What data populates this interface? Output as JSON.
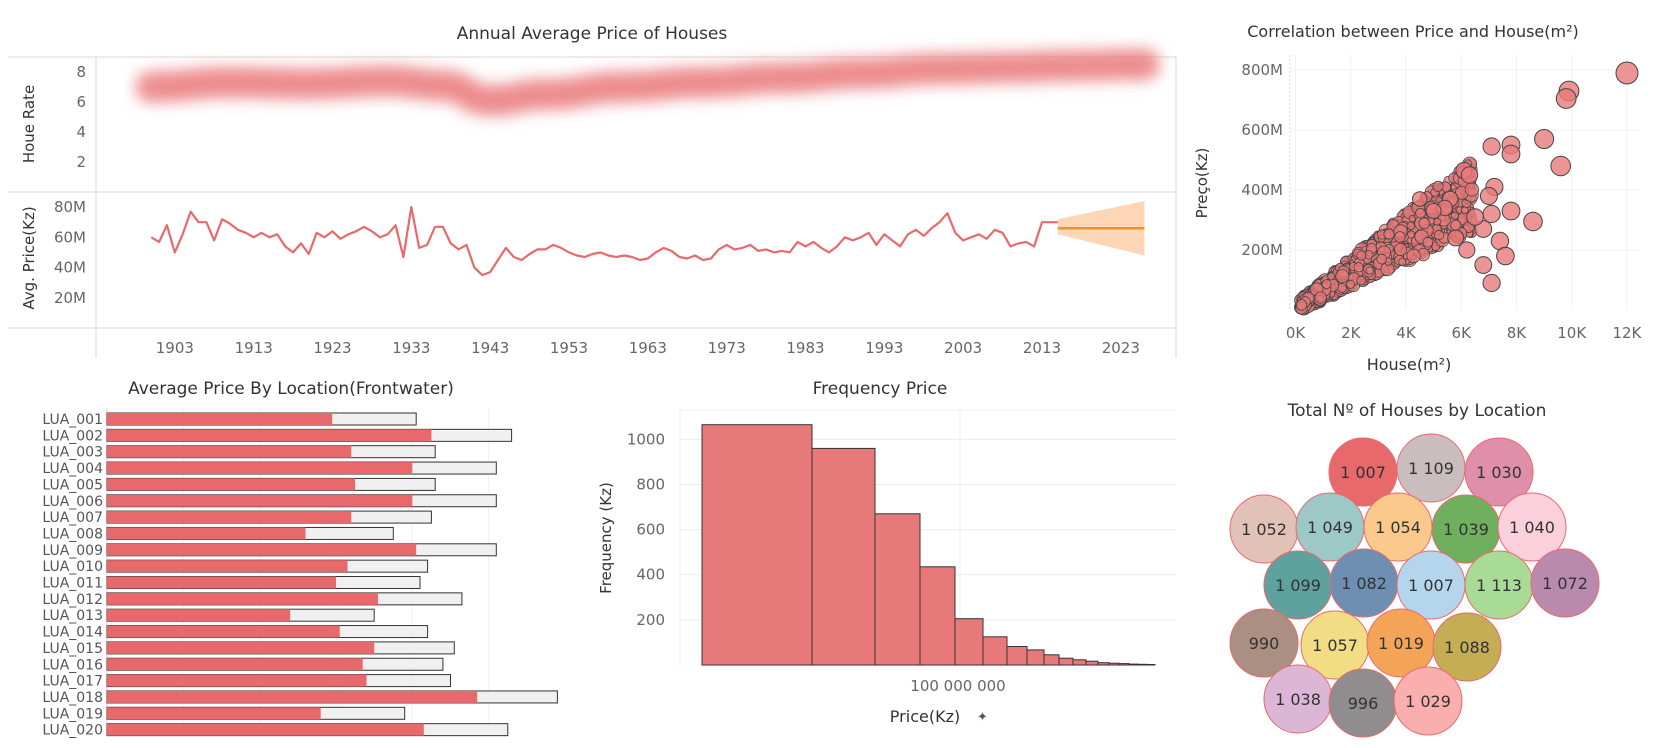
{
  "colors": {
    "primary": "#e8696b",
    "primary_fill": "#e8797a",
    "bar_outline": "#333333",
    "forecast": "#f28e2b",
    "forecast_band": "#fbcfa8",
    "grid": "#ececec",
    "bullet_ref": "#f0f0f0"
  },
  "chart_data": [
    {
      "id": "annual",
      "type": "line",
      "title": "Annual Average Price of Houses",
      "xlim": [
        1893,
        2030
      ],
      "x_ticks": [
        "1903",
        "1913",
        "1923",
        "1933",
        "1943",
        "1953",
        "1963",
        "1973",
        "1983",
        "1993",
        "2003",
        "2013",
        "2023"
      ],
      "x_tick_values": [
        1903,
        1913,
        1923,
        1933,
        1943,
        1953,
        1963,
        1973,
        1983,
        1993,
        2003,
        2013,
        2023
      ],
      "panels": [
        {
          "id": "rate",
          "ylabel": "Houe Rate",
          "ylim": [
            0,
            9
          ],
          "y_ticks": [
            "2",
            "4",
            "6",
            "8"
          ],
          "y_tick_values": [
            2,
            4,
            6,
            8
          ],
          "style": "blurred-band",
          "series": {
            "x": [
              1900,
              1910,
              1920,
              1930,
              1937,
              1943,
              1950,
              1960,
              1970,
              1980,
              1990,
              2000,
              2010,
              2015,
              2026
            ],
            "y": [
              7.0,
              7.3,
              7.2,
              7.4,
              7.1,
              6.1,
              6.5,
              7.0,
              7.3,
              7.6,
              7.9,
              8.2,
              8.3,
              8.4,
              8.5
            ]
          }
        },
        {
          "id": "price",
          "ylabel": "Avg. Price(Kz)",
          "ylim": [
            0,
            90
          ],
          "y_ticks": [
            "20M",
            "40M",
            "60M",
            "80M"
          ],
          "y_tick_values": [
            20,
            40,
            60,
            80
          ],
          "series": {
            "x": [
              1900,
              1901,
              1902,
              1903,
              1904,
              1905,
              1906,
              1907,
              1908,
              1909,
              1910,
              1911,
              1912,
              1913,
              1914,
              1915,
              1916,
              1917,
              1918,
              1919,
              1920,
              1921,
              1922,
              1923,
              1924,
              1925,
              1926,
              1927,
              1928,
              1929,
              1930,
              1931,
              1932,
              1933,
              1934,
              1935,
              1936,
              1937,
              1938,
              1939,
              1940,
              1941,
              1942,
              1943,
              1944,
              1945,
              1946,
              1947,
              1948,
              1949,
              1950,
              1951,
              1952,
              1953,
              1954,
              1955,
              1956,
              1957,
              1958,
              1959,
              1960,
              1961,
              1962,
              1963,
              1964,
              1965,
              1966,
              1967,
              1968,
              1969,
              1970,
              1971,
              1972,
              1973,
              1974,
              1975,
              1976,
              1977,
              1978,
              1979,
              1980,
              1981,
              1982,
              1983,
              1984,
              1985,
              1986,
              1987,
              1988,
              1989,
              1990,
              1991,
              1992,
              1993,
              1994,
              1995,
              1996,
              1997,
              1998,
              1999,
              2000,
              2001,
              2002,
              2003,
              2004,
              2005,
              2006,
              2007,
              2008,
              2009,
              2010,
              2011,
              2012,
              2013,
              2014,
              2015
            ],
            "y": [
              60,
              57,
              68,
              50,
              62,
              77,
              70,
              70,
              58,
              72,
              69,
              65,
              63,
              60,
              63,
              60,
              62,
              54,
              50,
              56,
              49,
              63,
              60,
              64,
              59,
              62,
              64,
              67,
              64,
              60,
              62,
              68,
              47,
              80,
              53,
              55,
              67,
              67,
              56,
              52,
              55,
              40,
              35,
              37,
              45,
              53,
              47,
              45,
              49,
              52,
              52,
              55,
              53,
              50,
              48,
              47,
              49,
              50,
              48,
              47,
              48,
              47,
              45,
              46,
              50,
              53,
              51,
              47,
              46,
              48,
              45,
              46,
              52,
              55,
              52,
              53,
              55,
              51,
              52,
              50,
              51,
              50,
              57,
              54,
              57,
              53,
              50,
              54,
              60,
              58,
              60,
              63,
              55,
              62,
              58,
              54,
              62,
              65,
              61,
              66,
              70,
              76,
              63,
              58,
              60,
              62,
              59,
              65,
              63,
              54,
              56,
              57,
              54,
              70,
              70,
              70
            ]
          },
          "forecast": {
            "x": [
              2015,
              2026
            ],
            "y": [
              66,
              66
            ],
            "lower": [
              62,
              48
            ],
            "upper": [
              72,
              84
            ]
          }
        }
      ]
    },
    {
      "id": "scatter",
      "type": "scatter",
      "title": "Correlation between Price and House(m²)",
      "xlabel": "House(m²)",
      "ylabel": "Preço(Kz)",
      "xlim": [
        -200,
        12400
      ],
      "ylim": [
        0,
        850
      ],
      "x_ticks": [
        "0K",
        "2K",
        "4K",
        "6K",
        "8K",
        "10K",
        "12K"
      ],
      "x_tick_values": [
        0,
        2000,
        4000,
        6000,
        8000,
        10000,
        12000
      ],
      "y_ticks": [
        "200M",
        "400M",
        "600M",
        "800M"
      ],
      "y_tick_values": [
        200,
        400,
        600,
        800
      ],
      "highlight_points": [
        {
          "x": 12000,
          "y": 790
        },
        {
          "x": 9900,
          "y": 730
        },
        {
          "x": 9800,
          "y": 705
        },
        {
          "x": 9000,
          "y": 570
        },
        {
          "x": 9600,
          "y": 480
        },
        {
          "x": 7800,
          "y": 550
        },
        {
          "x": 7800,
          "y": 520
        },
        {
          "x": 7100,
          "y": 545
        },
        {
          "x": 6100,
          "y": 465
        },
        {
          "x": 6300,
          "y": 450
        },
        {
          "x": 7200,
          "y": 410
        },
        {
          "x": 7000,
          "y": 380
        },
        {
          "x": 8600,
          "y": 295
        },
        {
          "x": 7800,
          "y": 330
        },
        {
          "x": 7100,
          "y": 320
        },
        {
          "x": 6800,
          "y": 270
        },
        {
          "x": 6500,
          "y": 310
        },
        {
          "x": 5600,
          "y": 370
        },
        {
          "x": 4500,
          "y": 370
        },
        {
          "x": 5800,
          "y": 240
        },
        {
          "x": 6200,
          "y": 200
        },
        {
          "x": 7400,
          "y": 230
        },
        {
          "x": 7600,
          "y": 180
        },
        {
          "x": 6800,
          "y": 150
        },
        {
          "x": 7100,
          "y": 90
        },
        {
          "x": 5400,
          "y": 340
        },
        {
          "x": 5000,
          "y": 330
        }
      ]
    },
    {
      "id": "bullet",
      "type": "bar",
      "title": "Average Price By Location(Frontwater)",
      "categories": [
        "LUA_001",
        "LUA_002",
        "LUA_003",
        "LUA_004",
        "LUA_005",
        "LUA_006",
        "LUA_007",
        "LUA_008",
        "LUA_009",
        "LUA_010",
        "LUA_011",
        "LUA_012",
        "LUA_013",
        "LUA_014",
        "LUA_015",
        "LUA_016",
        "LUA_017",
        "LUA_018",
        "LUA_019",
        "LUA_020"
      ],
      "values": [
        59,
        85,
        64,
        80,
        65,
        80,
        64,
        52,
        81,
        63,
        60,
        71,
        48,
        61,
        70,
        67,
        68,
        97,
        56,
        83
      ],
      "reference": [
        81,
        106,
        86,
        102,
        86,
        102,
        85,
        75,
        102,
        84,
        82,
        93,
        70,
        84,
        91,
        88,
        90,
        118,
        78,
        105
      ],
      "xlim": [
        0,
        120
      ]
    },
    {
      "id": "histogram",
      "type": "bar",
      "title": "Frequency  Price",
      "xlabel": "Price(Kz)",
      "ylabel": "Frequency (Kz)",
      "x_tick": "100 000 000",
      "ylim": [
        0,
        1130
      ],
      "y_ticks": [
        "200",
        "400",
        "600",
        "800",
        "1000"
      ],
      "y_tick_values": [
        200,
        400,
        600,
        800,
        1000
      ],
      "values": [
        1065,
        960,
        670,
        435,
        205,
        125,
        82,
        67,
        45,
        30,
        23,
        17,
        10,
        8,
        6,
        4,
        3,
        2
      ]
    },
    {
      "id": "bubbles",
      "type": "bubble",
      "title": "Total Nº of Houses by Location",
      "bubbles": [
        {
          "label": "1 007",
          "color": "#e8696b"
        },
        {
          "label": "1 109",
          "color": "#c9bdbd"
        },
        {
          "label": "1 030",
          "color": "#df8faa"
        },
        {
          "label": "1 052",
          "color": "#e2c2b7"
        },
        {
          "label": "1 049",
          "color": "#9cc9c6"
        },
        {
          "label": "1 054",
          "color": "#fbc98c"
        },
        {
          "label": "1 039",
          "color": "#6fb05f"
        },
        {
          "label": "1 040",
          "color": "#fbcfdb"
        },
        {
          "label": "1 099",
          "color": "#5fa19c"
        },
        {
          "label": "1 082",
          "color": "#6f8fb2"
        },
        {
          "label": "1 007",
          "color": "#b4d5ec"
        },
        {
          "label": "1 113",
          "color": "#a8dc96"
        },
        {
          "label": "1 072",
          "color": "#b98aad"
        },
        {
          "label": "990",
          "color": "#aa8f82"
        },
        {
          "label": "1 057",
          "color": "#f3dd84"
        },
        {
          "label": "1 019",
          "color": "#f3a456"
        },
        {
          "label": "1 088",
          "color": "#c4ad55"
        },
        {
          "label": "1 038",
          "color": "#dcb6d7"
        },
        {
          "label": "996",
          "color": "#8f8d8d"
        },
        {
          "label": "1 029",
          "color": "#fbaeae"
        }
      ]
    }
  ]
}
